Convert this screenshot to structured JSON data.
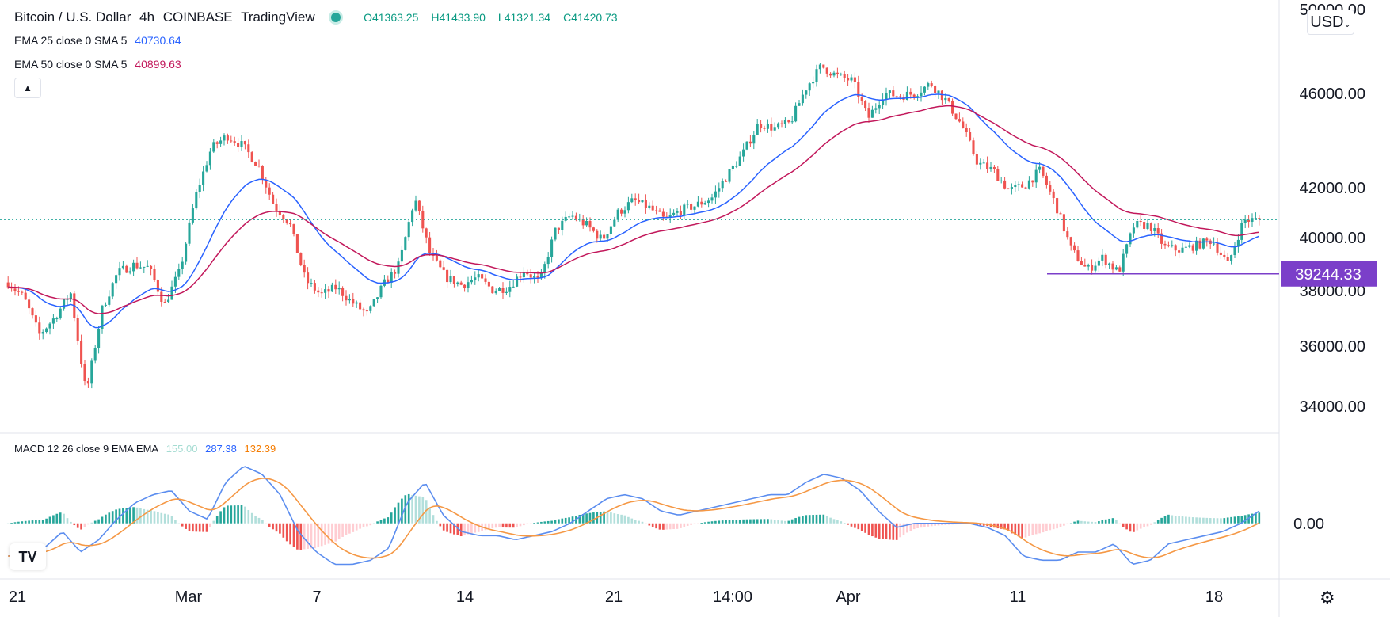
{
  "header": {
    "symbol": "Bitcoin / U.S. Dollar",
    "interval": "4h",
    "exchange": "COINBASE",
    "platform": "TradingView",
    "open": "O41363.25",
    "high": "H41433.90",
    "low": "L41321.34",
    "close": "C41420.73"
  },
  "indicators": {
    "ema25": {
      "label": "EMA 25 close 0 SMA 5",
      "value": "40730.64",
      "color": "#2962ff"
    },
    "ema50": {
      "label": "EMA 50 close 0 SMA 5",
      "value": "40899.63",
      "color": "#c2185b"
    },
    "macd": {
      "label": "MACD 12 26 close 9 EMA EMA",
      "hist": "155.00",
      "macd": "287.38",
      "signal": "132.39"
    }
  },
  "currency_button": "USD",
  "price_axis": {
    "labels": [
      "50000.00",
      "46000.00",
      "42000.00",
      "40000.00",
      "38000.00",
      "36000.00",
      "34000.00"
    ],
    "support_label": "39244.33"
  },
  "macd_axis": {
    "labels": [
      "0.00"
    ]
  },
  "time_axis": {
    "labels": [
      "21",
      "Mar",
      "7",
      "14",
      "21",
      "14:00",
      "Apr",
      "11",
      "18"
    ]
  },
  "icons": {
    "logo": "tradingview-logo-icon",
    "settings": "gear-icon",
    "collapse": "chevron-up-icon"
  },
  "colors": {
    "up": "#26a69a",
    "down": "#ef5350",
    "support": "#7b3fc9",
    "macd_line": "#5b8def",
    "signal_line": "#f59845"
  },
  "chart_data": {
    "type": "candlestick",
    "support_level": 39244.33,
    "last_close": 41420.73,
    "close_path": [
      38900,
      38300,
      36800,
      37500,
      38500,
      34400,
      37800,
      39300,
      39600,
      39500,
      38000,
      39400,
      42400,
      44300,
      44800,
      44400,
      43600,
      42000,
      41300,
      39000,
      38400,
      38700,
      38100,
      37600,
      38800,
      39600,
      42300,
      40000,
      39100,
      38800,
      39100,
      38600,
      38700,
      39400,
      38900,
      41000,
      41600,
      41200,
      40600,
      41700,
      42200,
      41900,
      41400,
      41800,
      42000,
      42300,
      43200,
      44100,
      45300,
      45100,
      45300,
      46700,
      47600,
      47200,
      47000,
      45500,
      46500,
      46400,
      46500,
      46900,
      46200,
      45200,
      43700,
      43400,
      42600,
      42800,
      43400,
      42000,
      40200,
      39400,
      39900,
      39300,
      41200,
      41200,
      40300,
      40200,
      40400,
      40600,
      39600,
      41400,
      41420.73
    ],
    "ylim": [
      32900,
      50000
    ],
    "macd_path": [
      -800,
      -700,
      -600,
      -200,
      -700,
      -400,
      100,
      500,
      700,
      800,
      300,
      100,
      1000,
      1400,
      1200,
      700,
      -200,
      -700,
      -1000,
      -1000,
      -900,
      -600,
      500,
      1000,
      200,
      -200,
      -300,
      -300,
      -400,
      -300,
      -200,
      0,
      300,
      600,
      700,
      600,
      300,
      200,
      300,
      400,
      500,
      600,
      700,
      700,
      1000,
      1200,
      1100,
      800,
      300,
      -100,
      0,
      0,
      0,
      0,
      -100,
      -300,
      -800,
      -900,
      -900,
      -700,
      -700,
      -500,
      -1000,
      -900,
      -500,
      -400,
      -300,
      -200,
      0,
      300
    ],
    "macd_ylim": [
      -1300,
      1600
    ]
  }
}
